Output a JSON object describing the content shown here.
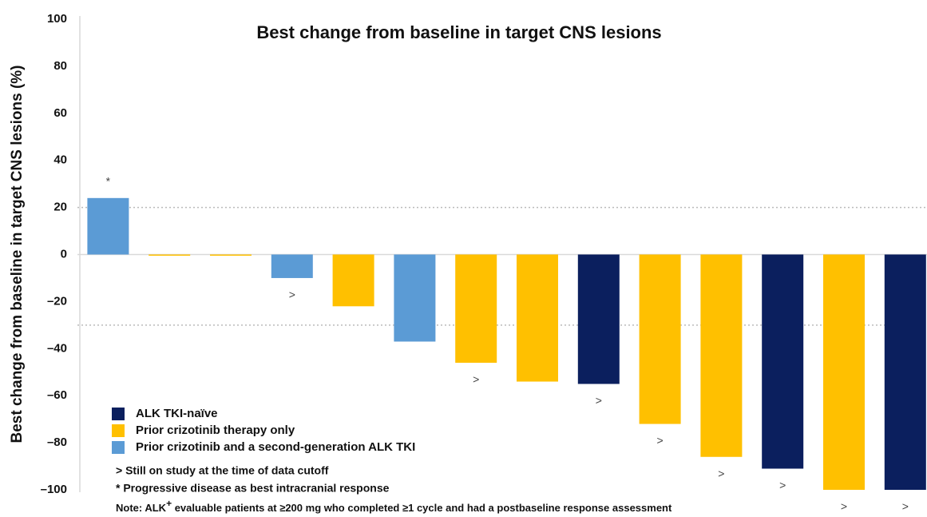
{
  "chart_data": {
    "type": "bar",
    "title": "Best change from baseline in target CNS lesions",
    "y_label": "Best change from baseline in target CNS lesions (%)",
    "categories": [
      null,
      null,
      null,
      null,
      null,
      null,
      null,
      null,
      null,
      null,
      null,
      null,
      null,
      null
    ],
    "series": [
      {
        "name": "ALK TKI-naïve",
        "color": "#0b1f5e",
        "values": [
          null,
          null,
          null,
          null,
          null,
          null,
          null,
          null,
          -55,
          null,
          null,
          -91,
          null,
          -100
        ]
      },
      {
        "name": "Prior crizotinib therapy only",
        "color": "#ffc000",
        "values": [
          null,
          -0.5,
          -0.5,
          null,
          -22,
          null,
          -46,
          -54,
          null,
          -72,
          -86,
          null,
          -100,
          null
        ]
      },
      {
        "name": "Prior crizotinib and a second-generation ALK TKI",
        "color": "#5b9bd5",
        "values": [
          24,
          null,
          null,
          -10,
          null,
          -37,
          null,
          null,
          null,
          null,
          null,
          null,
          null,
          null
        ]
      }
    ],
    "markers": [
      "*",
      null,
      null,
      ">",
      null,
      null,
      ">",
      null,
      ">",
      ">",
      ">",
      ">",
      ">",
      ">"
    ],
    "reference_lines": [
      20,
      -30
    ],
    "ylim": [
      -100,
      100
    ],
    "yticks": [
      {
        "value": -100,
        "label": "–100"
      },
      {
        "value": -80,
        "label": "–80"
      },
      {
        "value": -60,
        "label": "–60"
      },
      {
        "value": -40,
        "label": "–40"
      },
      {
        "value": -20,
        "label": "–20"
      },
      0,
      20,
      40,
      60,
      80,
      100
    ],
    "notes": [
      "> Still on study at the time of data cutoff",
      "* Progressive disease as best intracranial response"
    ],
    "footnote": {
      "before": "Note: ALK",
      "sup": "+",
      "after": " evaluable patients at ≥200 mg who completed ≥1 cycle and had a postbaseline response assessment"
    }
  }
}
